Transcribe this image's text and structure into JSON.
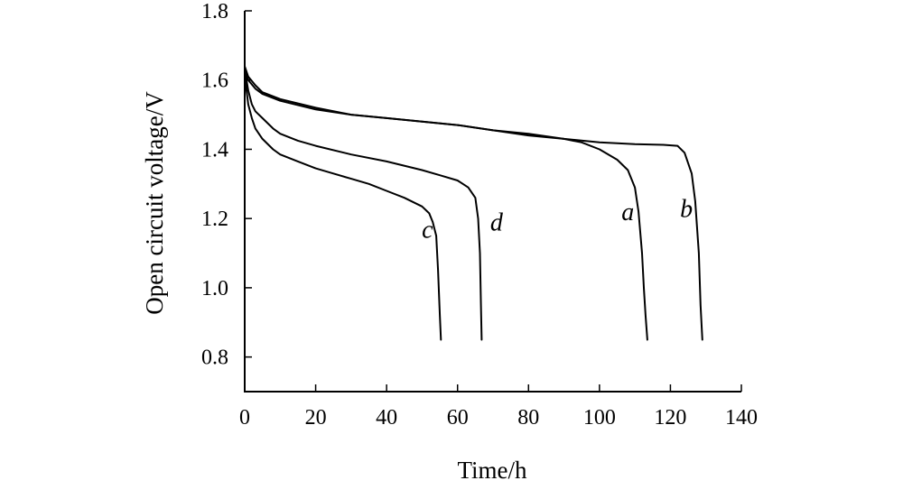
{
  "chart_data": {
    "type": "line",
    "xlabel": "Time/h",
    "ylabel": "Open circuit voltage/V",
    "xlim": [
      0,
      140
    ],
    "ylim": [
      0.7,
      1.8
    ],
    "xticks": [
      0,
      20,
      40,
      60,
      80,
      100,
      120,
      140
    ],
    "yticks": [
      0.8,
      1.0,
      1.2,
      1.4,
      1.6,
      1.8
    ],
    "xtick_labels": [
      "0",
      "20",
      "40",
      "60",
      "80",
      "100",
      "120",
      "140"
    ],
    "ytick_labels": [
      "0.8",
      "1.0",
      "1.2",
      "1.4",
      "1.6",
      "1.8"
    ],
    "grid": false,
    "series": [
      {
        "name": "a",
        "x": [
          0,
          1,
          3,
          5,
          10,
          20,
          30,
          40,
          50,
          60,
          70,
          80,
          90,
          95,
          100,
          105,
          108,
          110,
          111,
          112,
          112.5,
          113,
          113.5
        ],
        "y": [
          1.63,
          1.6,
          1.575,
          1.56,
          1.54,
          1.515,
          1.5,
          1.49,
          1.48,
          1.47,
          1.455,
          1.44,
          1.43,
          1.42,
          1.4,
          1.37,
          1.34,
          1.29,
          1.22,
          1.1,
          1.0,
          0.92,
          0.85
        ]
      },
      {
        "name": "b",
        "x": [
          0,
          1,
          3,
          5,
          10,
          20,
          30,
          40,
          50,
          60,
          70,
          80,
          90,
          100,
          110,
          118,
          122,
          124,
          126,
          127,
          128,
          128.5,
          129
        ],
        "y": [
          1.64,
          1.61,
          1.585,
          1.565,
          1.545,
          1.52,
          1.5,
          1.49,
          1.48,
          1.47,
          1.455,
          1.445,
          1.43,
          1.42,
          1.415,
          1.413,
          1.41,
          1.39,
          1.33,
          1.25,
          1.1,
          0.95,
          0.85
        ]
      },
      {
        "name": "c",
        "x": [
          0,
          0.5,
          1,
          2,
          3,
          5,
          8,
          10,
          15,
          20,
          25,
          30,
          35,
          40,
          45,
          50,
          52,
          53,
          54,
          54.5,
          55,
          55.3
        ],
        "y": [
          1.62,
          1.57,
          1.53,
          1.49,
          1.46,
          1.43,
          1.4,
          1.385,
          1.365,
          1.345,
          1.33,
          1.315,
          1.3,
          1.28,
          1.26,
          1.235,
          1.215,
          1.19,
          1.15,
          1.05,
          0.92,
          0.85
        ]
      },
      {
        "name": "d",
        "x": [
          0,
          0.5,
          1,
          2,
          3,
          5,
          8,
          10,
          15,
          20,
          30,
          40,
          50,
          55,
          60,
          63,
          65,
          65.8,
          66.3,
          66.6,
          66.8
        ],
        "y": [
          1.63,
          1.6,
          1.57,
          1.53,
          1.51,
          1.49,
          1.46,
          1.445,
          1.425,
          1.41,
          1.385,
          1.365,
          1.34,
          1.325,
          1.31,
          1.29,
          1.26,
          1.2,
          1.1,
          0.95,
          0.85
        ]
      }
    ],
    "annotations": [
      {
        "text": "a",
        "x": 108,
        "y": 1.195
      },
      {
        "text": "b",
        "x": 124.5,
        "y": 1.205
      },
      {
        "text": "c",
        "x": 51.5,
        "y": 1.145
      },
      {
        "text": "d",
        "x": 71,
        "y": 1.165
      }
    ]
  }
}
